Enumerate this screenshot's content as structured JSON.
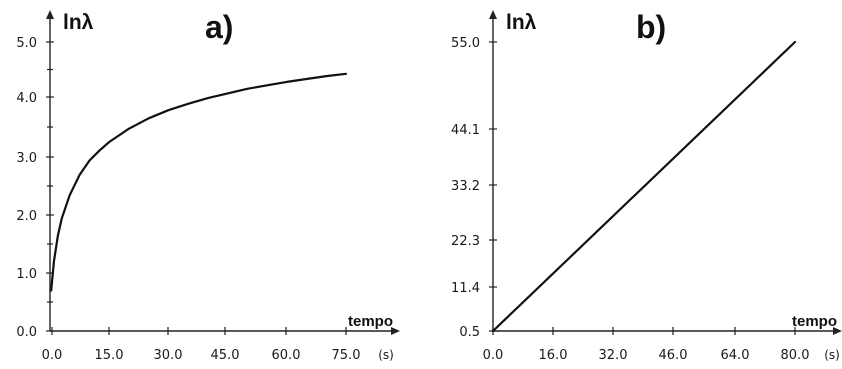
{
  "chart_data": [
    {
      "type": "line",
      "panel_label": "a)",
      "ylabel": "lnλ",
      "xlabel": "tempo",
      "x_unit": "(s)",
      "xlim": [
        0,
        75
      ],
      "ylim": [
        0,
        5
      ],
      "x_ticks": [
        "0.0",
        "15.0",
        "30.0",
        "45.0",
        "60.0",
        "75.0"
      ],
      "y_ticks": [
        "0.0",
        "1.0",
        "2.0",
        "3.0",
        "4.0",
        "5.0"
      ],
      "grid": false,
      "series": [
        {
          "x": [
            0.3,
            1,
            2,
            3,
            5,
            7.5,
            10,
            12.5,
            15,
            20,
            25,
            30,
            35,
            40,
            45,
            50,
            55,
            60,
            65,
            70,
            75
          ],
          "y": [
            0.7,
            1.2,
            1.65,
            1.95,
            2.35,
            2.7,
            2.95,
            3.12,
            3.27,
            3.5,
            3.68,
            3.82,
            3.93,
            4.03,
            4.11,
            4.19,
            4.25,
            4.31,
            4.36,
            4.41,
            4.45
          ]
        }
      ]
    },
    {
      "type": "line",
      "panel_label": "b)",
      "ylabel": "lnλ",
      "xlabel": "tempo",
      "x_unit": "(s)",
      "xlim": [
        0,
        80
      ],
      "ylim": [
        0.5,
        55
      ],
      "x_ticks": [
        "0.0",
        "16.0",
        "32.0",
        "46.0",
        "64.0",
        "80.0"
      ],
      "y_ticks": [
        "0.5",
        "11.4",
        "22.3",
        "33.2",
        "44.1",
        "55.0"
      ],
      "grid": false,
      "series": [
        {
          "x": [
            0,
            80
          ],
          "y": [
            0.5,
            55.0
          ]
        }
      ]
    }
  ]
}
